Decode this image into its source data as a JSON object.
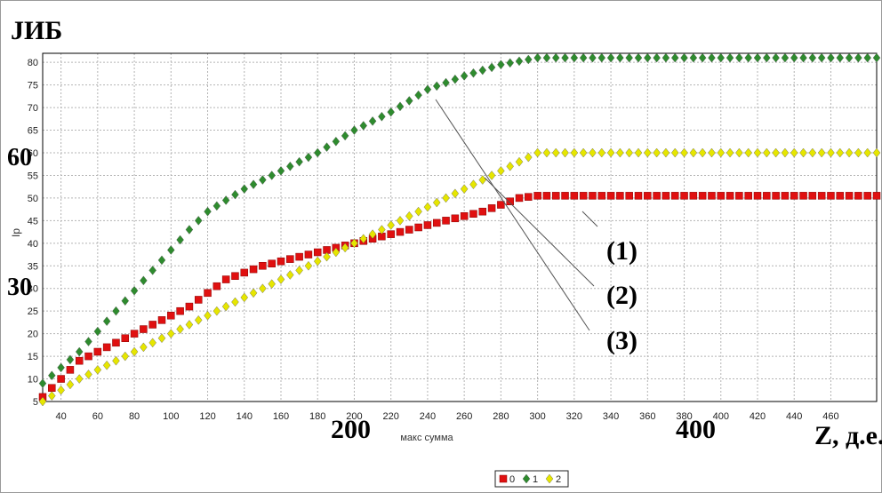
{
  "chart_data": {
    "type": "scatter",
    "xlabel": "макс сумма",
    "ylabel": "Ip",
    "xlim": [
      30,
      485
    ],
    "ylim": [
      5,
      82
    ],
    "x_ticks": [
      40,
      60,
      80,
      100,
      120,
      140,
      160,
      180,
      200,
      220,
      240,
      260,
      280,
      300,
      320,
      340,
      360,
      380,
      400,
      420,
      440,
      460
    ],
    "y_ticks": [
      5,
      10,
      15,
      20,
      25,
      30,
      35,
      40,
      45,
      50,
      55,
      60,
      65,
      70,
      75,
      80
    ],
    "grid": true,
    "legend_position": "bottom-center",
    "series": [
      {
        "name": "0",
        "color": "#e01010",
        "marker": "square",
        "points": [
          [
            30,
            6
          ],
          [
            50,
            14
          ],
          [
            70,
            18
          ],
          [
            90,
            22
          ],
          [
            110,
            26
          ],
          [
            130,
            32
          ],
          [
            150,
            35
          ],
          [
            170,
            37
          ],
          [
            190,
            39
          ],
          [
            210,
            41
          ],
          [
            230,
            43
          ],
          [
            250,
            45
          ],
          [
            270,
            47
          ],
          [
            290,
            50
          ],
          [
            300,
            50.5
          ],
          [
            485,
            50.5
          ]
        ]
      },
      {
        "name": "1",
        "color": "#2e8b2e",
        "marker": "diamond",
        "points": [
          [
            30,
            9
          ],
          [
            50,
            16
          ],
          [
            70,
            25
          ],
          [
            90,
            34
          ],
          [
            110,
            43
          ],
          [
            120,
            47
          ],
          [
            140,
            52
          ],
          [
            160,
            56
          ],
          [
            180,
            60
          ],
          [
            200,
            65
          ],
          [
            220,
            69
          ],
          [
            240,
            74
          ],
          [
            260,
            77
          ],
          [
            280,
            79.5
          ],
          [
            300,
            81
          ],
          [
            485,
            81
          ]
        ]
      },
      {
        "name": "2",
        "color": "#e6e600",
        "marker": "diamond",
        "points": [
          [
            30,
            5
          ],
          [
            50,
            10
          ],
          [
            70,
            14
          ],
          [
            90,
            18
          ],
          [
            110,
            22
          ],
          [
            130,
            26
          ],
          [
            150,
            30
          ],
          [
            170,
            34
          ],
          [
            190,
            38
          ],
          [
            210,
            42
          ],
          [
            230,
            46
          ],
          [
            250,
            50
          ],
          [
            270,
            54
          ],
          [
            290,
            58
          ],
          [
            300,
            60
          ],
          [
            485,
            60
          ]
        ]
      }
    ],
    "annotations": {
      "y_title": "JИБ",
      "x_title": "Z, д.е.",
      "curve_labels": [
        "(1)",
        "(2)",
        "(3)"
      ],
      "big_x_labels": [
        "200",
        "400"
      ],
      "big_y_labels": [
        "60",
        "30"
      ]
    }
  }
}
